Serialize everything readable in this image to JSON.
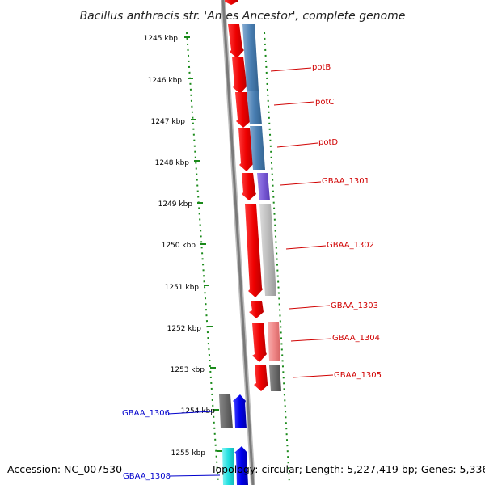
{
  "title": "Bacillus anthracis str. 'Ames Ancestor', complete genome",
  "kbp_labels": [
    "1245 kbp",
    "1246 kbp",
    "1247 kbp",
    "1248 kbp",
    "1249 kbp",
    "1250 kbp",
    "1251 kbp",
    "1252 kbp",
    "1253 kbp",
    "1254 kbp",
    "1255 kbp"
  ],
  "genes_right": [
    "potB",
    "potC",
    "potD",
    "GBAA_1301",
    "GBAA_1302",
    "GBAA_1303",
    "GBAA_1304",
    "GBAA_1305"
  ],
  "genes_left": [
    "GBAA_1306",
    "GBAA_1308"
  ],
  "footer": {
    "accession": "Accession: NC_007530",
    "topology": "Topology: circular; Length: 5,227,419 bp; Genes: 5,336"
  },
  "colors": {
    "forward_gene": "#ee0000",
    "orthology_steelblue": "#4a7fb3",
    "orthology_purple": "#7b5cd6",
    "orthology_gray": "#b8b8b8",
    "orthology_pink": "#f08888",
    "orthology_darkgray": "#6a6a6a",
    "reverse_gene": "#0000ee",
    "cyan_gene": "#22e0e0",
    "label_red": "#d00000",
    "label_blue": "#0000cc",
    "tick_green": "#1a8a1a"
  }
}
